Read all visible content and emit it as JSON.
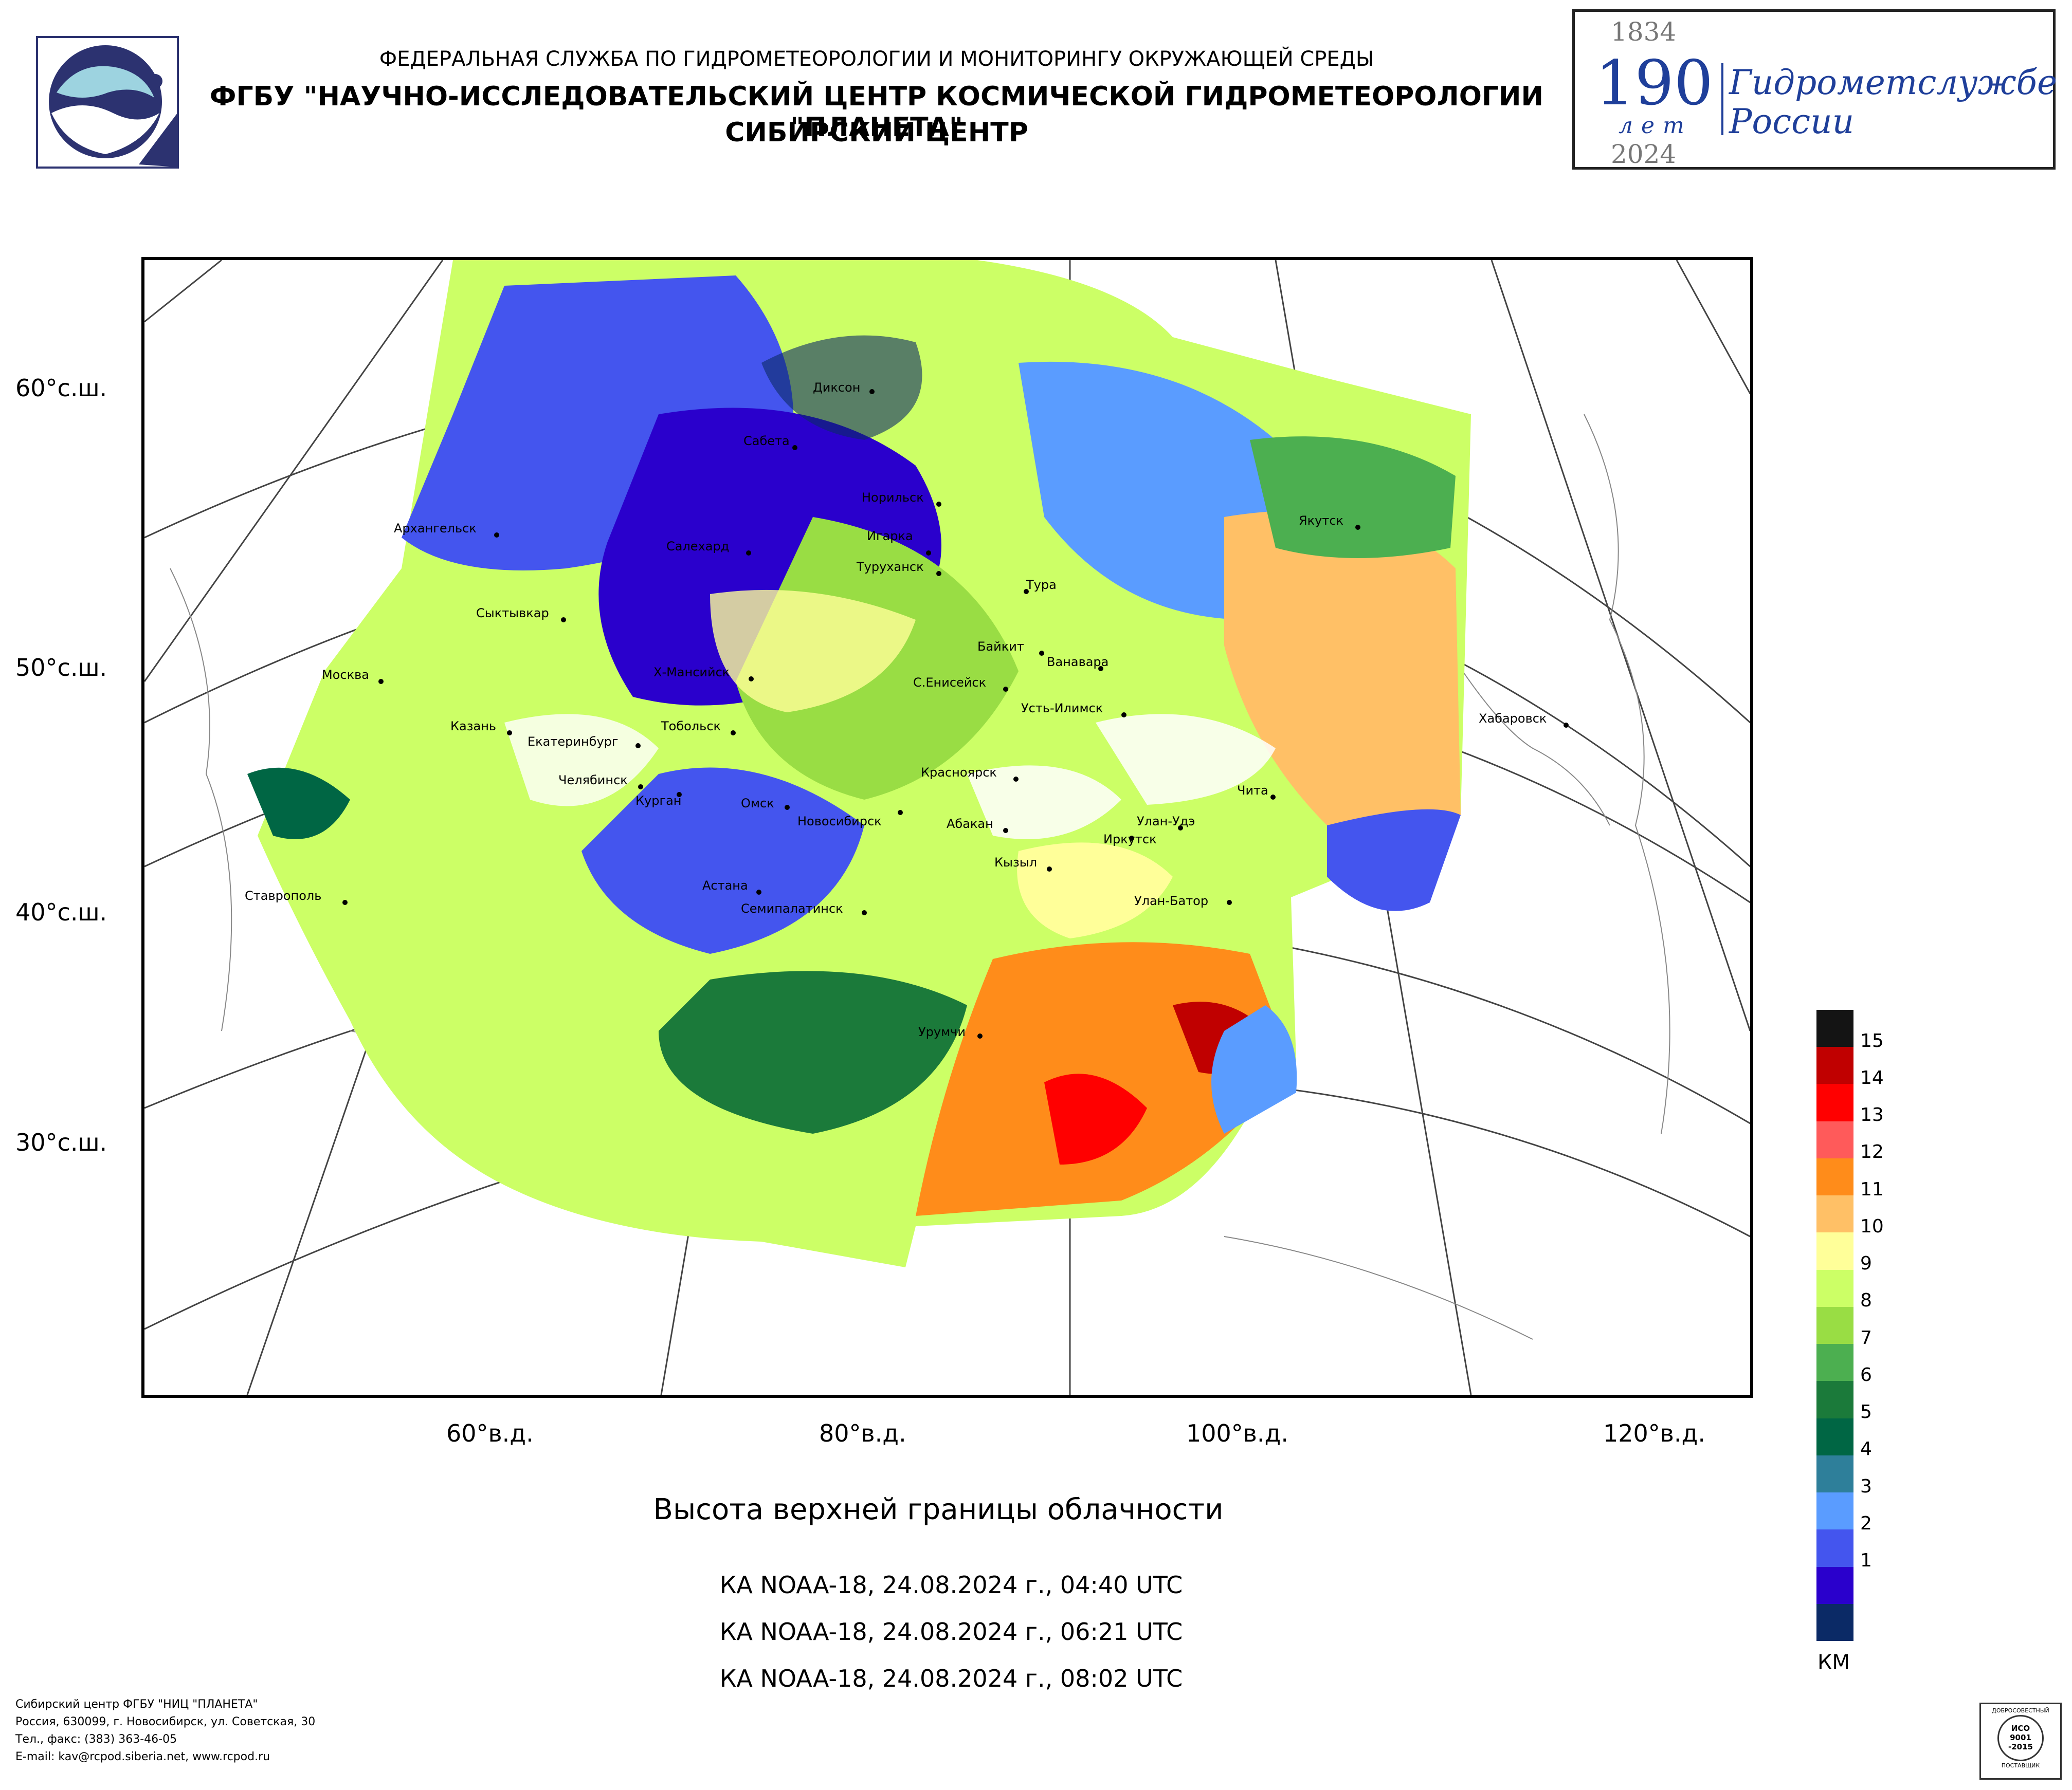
{
  "header": {
    "line1": "ФЕДЕРАЛЬНАЯ СЛУЖБА ПО ГИДРОМЕТЕОРОЛОГИИ И МОНИТОРИНГУ ОКРУЖАЮЩЕЙ СРЕДЫ",
    "line2": "ФГБУ \"НАУЧНО-ИССЛЕДОВАТЕЛЬСКИЙ ЦЕНТР КОСМИЧЕСКОЙ ГИДРОМЕТЕОРОЛОГИИ \"ПЛАНЕТА\"",
    "line3": "СИБИРСКИЙ ЦЕНТР"
  },
  "anniversary": {
    "year_start": "1834",
    "number": "190",
    "years_word": "лет",
    "year_end": "2024",
    "text_line1": "Гидрометслужбе",
    "text_line2": "России"
  },
  "map": {
    "latitude_labels": [
      "60°с.ш.",
      "50°с.ш.",
      "40°с.ш.",
      "30°с.ш."
    ],
    "longitude_labels": [
      "60°в.д.",
      "80°в.д.",
      "100°в.д.",
      "120°в.д."
    ],
    "cities": [
      "Диксон",
      "Сабета",
      "Норильск",
      "Архангельск",
      "Салехард",
      "Игарка",
      "Якутск",
      "Туруханск",
      "Тура",
      "Сыктывкар",
      "Байкит",
      "Ванавара",
      "Москва",
      "Х-Мансийск",
      "С.Енисейск",
      "Усть-Илимск",
      "Хабаровск",
      "Казань",
      "Тобольск",
      "Екатеринбург",
      "Красноярск",
      "Челябинск",
      "Чита",
      "Курган",
      "Омск",
      "Новосибирск",
      "Абакан",
      "Улан-Удэ",
      "Иркутск",
      "Кызыл",
      "Астана",
      "Ставрополь",
      "Улан-Батор",
      "Семипалатинск",
      "Урумчи"
    ]
  },
  "product_title": "Высота верхней границы облачности",
  "passes": [
    "КА NOAA-18, 24.08.2024 г., 04:40 UTC",
    "КА NOAA-18, 24.08.2024 г., 06:21 UTC",
    "КА NOAA-18, 24.08.2024 г., 08:02 UTC"
  ],
  "legend": {
    "unit": "КМ",
    "levels": [
      {
        "label": "15",
        "color": "#141414"
      },
      {
        "label": "14",
        "color": "#c00000"
      },
      {
        "label": "13",
        "color": "#ff0000"
      },
      {
        "label": "12",
        "color": "#ff5a5a"
      },
      {
        "label": "11",
        "color": "#ff8c1a"
      },
      {
        "label": "10",
        "color": "#ffc066"
      },
      {
        "label": "9",
        "color": "#ffff99"
      },
      {
        "label": "8",
        "color": "#ccff66"
      },
      {
        "label": "7",
        "color": "#99dd44"
      },
      {
        "label": "6",
        "color": "#4caf50"
      },
      {
        "label": "5",
        "color": "#1b7a3a"
      },
      {
        "label": "4",
        "color": "#006644"
      },
      {
        "label": "3",
        "color": "#2e7f9a"
      },
      {
        "label": "2",
        "color": "#5a9cff"
      },
      {
        "label": "1",
        "color": "#4455ee"
      },
      {
        "label": "",
        "color": "#2a00cc"
      },
      {
        "label": "",
        "color": "#0b2a66"
      }
    ]
  },
  "footer": {
    "line1": "Сибирский центр ФГБУ \"НИЦ \"ПЛАНЕТА\"",
    "line2": "Россия, 630099, г. Новосибирск, ул. Советская, 30",
    "line3": "Тел., факс: (383) 363-46-05",
    "line4": "E-mail: kav@rcpod.siberia.net, www.rcpod.ru"
  },
  "iso_badge": {
    "top": "ДОБРОСОВЕСТНЫЙ",
    "mid1": "ИСО",
    "mid2": "9001",
    "mid3": "-2015",
    "bottom": "ПОСТАВЩИК"
  }
}
